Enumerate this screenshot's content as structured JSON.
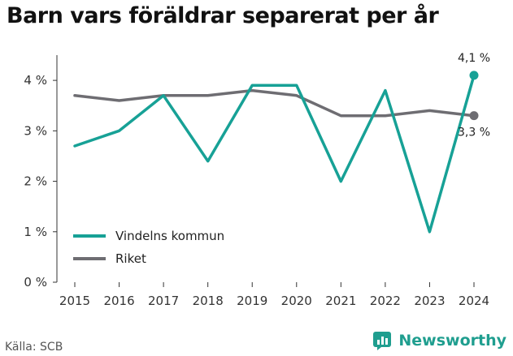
{
  "source": "Källa: SCB",
  "brand": {
    "name": "Newsworthy",
    "color": "#1f9e8f",
    "icon": "newsworthy-logo-icon"
  },
  "chart_data": {
    "type": "line",
    "title": "Barn vars föräldrar separerat per år",
    "xlabel": "",
    "ylabel": "",
    "x": [
      "2015",
      "2016",
      "2017",
      "2018",
      "2019",
      "2020",
      "2021",
      "2022",
      "2023",
      "2024"
    ],
    "ylim": [
      0,
      4.5
    ],
    "yticks": [
      0,
      1,
      2,
      3,
      4
    ],
    "ytick_labels": [
      "0 %",
      "1 %",
      "2 %",
      "3 %",
      "4 %"
    ],
    "grid": false,
    "legend_position": "bottom-left",
    "series": [
      {
        "name": "Vindelns kommun",
        "color": "#17a196",
        "values": [
          2.7,
          3.0,
          3.7,
          2.4,
          3.9,
          3.9,
          2.0,
          3.8,
          1.0,
          4.1
        ],
        "end_label": "4,1 %"
      },
      {
        "name": "Riket",
        "color": "#6e6d72",
        "values": [
          3.7,
          3.6,
          3.7,
          3.7,
          3.8,
          3.7,
          3.3,
          3.3,
          3.4,
          3.3
        ],
        "end_label": "3,3 %"
      }
    ]
  }
}
